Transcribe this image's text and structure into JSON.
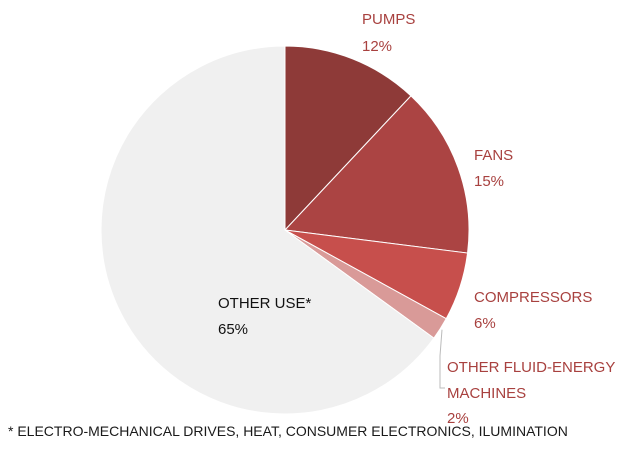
{
  "chart_data": {
    "type": "pie",
    "title": "",
    "slices": [
      {
        "name": "PUMPS",
        "value": 12,
        "value_label": "12%",
        "color": "#8e3a38"
      },
      {
        "name": "FANS",
        "value": 15,
        "value_label": "15%",
        "color": "#ab4443"
      },
      {
        "name": "COMPRESSORS",
        "value": 6,
        "value_label": "6%",
        "color": "#c74f4c"
      },
      {
        "name": "OTHER FLUID-ENERGY MACHINES",
        "value": 2,
        "value_label": "2%",
        "color": "#d99a98"
      },
      {
        "name": "OTHER USE*",
        "value": 65,
        "value_label": "65%",
        "color": "#f0f0f0"
      }
    ],
    "label_color": "#a8413f",
    "footnote": "* ELECTRO-MECHANICAL DRIVES, HEAT, CONSUMER ELECTRONICS, ILUMINATION"
  }
}
